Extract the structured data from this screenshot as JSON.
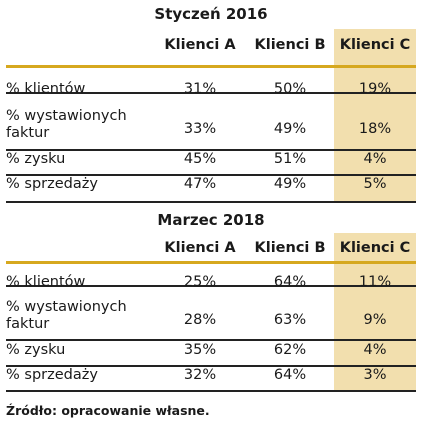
{
  "tables": [
    {
      "title": "Styczeń 2016",
      "columns": [
        "Klienci A",
        "Klienci B",
        "Klienci C"
      ],
      "rows": [
        {
          "label": "% klientów",
          "values": [
            "31%",
            "50%",
            "19%"
          ]
        },
        {
          "label": "% wystawionych faktur",
          "values": [
            "33%",
            "49%",
            "18%"
          ]
        },
        {
          "label": "% zysku",
          "values": [
            "45%",
            "51%",
            "4%"
          ]
        },
        {
          "label": "% sprzedaży",
          "values": [
            "47%",
            "49%",
            "5%"
          ]
        }
      ]
    },
    {
      "title": "Marzec 2018",
      "columns": [
        "Klienci A",
        "Klienci B",
        "Klienci C"
      ],
      "rows": [
        {
          "label": "% klientów",
          "values": [
            "25%",
            "64%",
            "11%"
          ]
        },
        {
          "label": "% wystawionych faktur",
          "values": [
            "28%",
            "63%",
            "9%"
          ]
        },
        {
          "label": "% zysku",
          "values": [
            "35%",
            "62%",
            "4%"
          ]
        },
        {
          "label": "% sprzedaży",
          "values": [
            "32%",
            "64%",
            "3%"
          ]
        }
      ]
    }
  ],
  "source": "Źródło: opracowanie własne.",
  "colors": {
    "highlight_column": "#f2dfae",
    "accent_rule": "#d6a81f",
    "rule": "#222222"
  }
}
